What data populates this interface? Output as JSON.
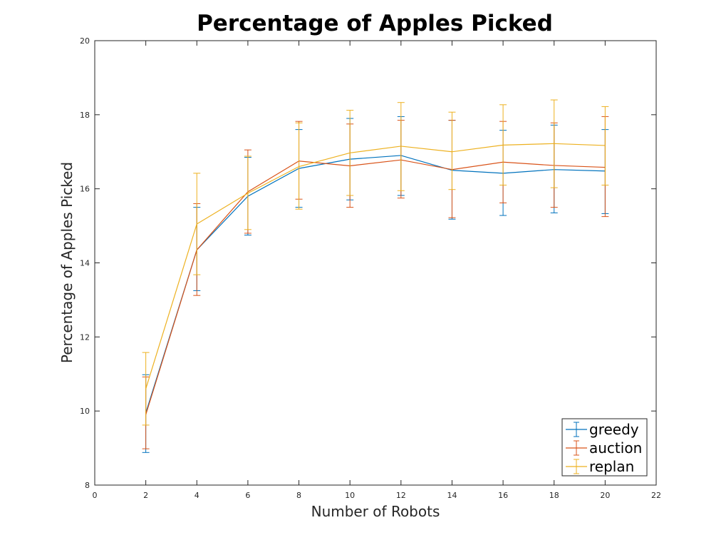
{
  "chart_data": {
    "type": "line",
    "title": "Percentage of Apples Picked",
    "xlabel": "Number of Robots",
    "ylabel": "Percentage of Apples Picked",
    "xlim": [
      0,
      22
    ],
    "ylim": [
      8,
      20
    ],
    "xticks": [
      0,
      2,
      4,
      6,
      8,
      10,
      12,
      14,
      16,
      18,
      20,
      22
    ],
    "yticks": [
      8,
      10,
      12,
      14,
      16,
      18,
      20
    ],
    "grid": false,
    "legend_position": "bottom-right",
    "x": [
      2,
      4,
      6,
      8,
      10,
      12,
      14,
      16,
      18,
      20
    ],
    "series": [
      {
        "name": "greedy",
        "color": "#0072BD",
        "values": [
          9.95,
          14.35,
          15.8,
          16.55,
          16.8,
          16.9,
          16.5,
          16.42,
          16.52,
          16.48
        ],
        "err_low": [
          8.88,
          13.25,
          14.75,
          15.5,
          15.7,
          15.82,
          15.18,
          15.28,
          15.35,
          15.33
        ],
        "err_high": [
          10.98,
          15.5,
          16.85,
          17.6,
          17.9,
          17.95,
          17.85,
          17.58,
          17.72,
          17.6
        ]
      },
      {
        "name": "auction",
        "color": "#D95319",
        "values": [
          9.9,
          14.35,
          15.92,
          16.75,
          16.62,
          16.78,
          16.52,
          16.72,
          16.63,
          16.58
        ],
        "err_low": [
          8.98,
          13.12,
          14.8,
          15.72,
          15.5,
          15.75,
          15.22,
          15.62,
          15.5,
          15.25
        ],
        "err_high": [
          10.92,
          15.6,
          17.05,
          17.82,
          17.75,
          17.85,
          17.85,
          17.82,
          17.78,
          17.95
        ]
      },
      {
        "name": "replan",
        "color": "#EDB120",
        "values": [
          10.6,
          15.05,
          15.88,
          16.6,
          16.97,
          17.15,
          17.0,
          17.18,
          17.22,
          17.17
        ],
        "err_low": [
          9.62,
          13.68,
          14.9,
          15.45,
          15.82,
          15.95,
          15.98,
          16.1,
          16.03,
          16.1
        ],
        "err_high": [
          11.58,
          16.42,
          16.88,
          17.78,
          18.12,
          18.33,
          18.07,
          18.27,
          18.4,
          18.22
        ]
      }
    ]
  }
}
